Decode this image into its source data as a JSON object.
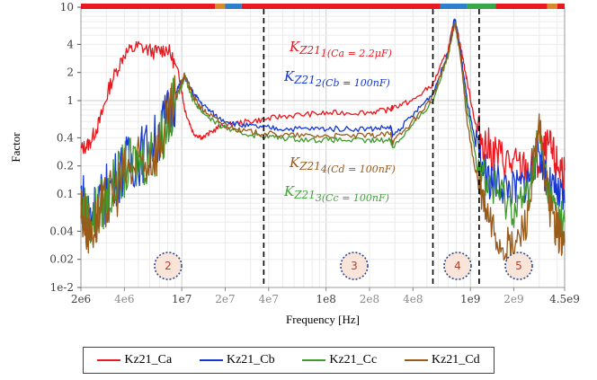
{
  "chart_data": {
    "type": "line",
    "xlabel": "Frequency [Hz]",
    "ylabel": "Factor",
    "xscale": "log",
    "yscale": "log",
    "xlim": [
      2000000,
      4500000000
    ],
    "ylim": [
      0.01,
      10
    ],
    "x_ticks": [
      {
        "value": 2000000,
        "label": "2e6",
        "major": true
      },
      {
        "value": 4000000,
        "label": "4e6",
        "major": false
      },
      {
        "value": 10000000,
        "label": "1e7",
        "major": true
      },
      {
        "value": 20000000,
        "label": "2e7",
        "major": false
      },
      {
        "value": 40000000,
        "label": "4e7",
        "major": false
      },
      {
        "value": 100000000,
        "label": "1e8",
        "major": true
      },
      {
        "value": 200000000,
        "label": "2e8",
        "major": false
      },
      {
        "value": 400000000,
        "label": "4e8",
        "major": false
      },
      {
        "value": 1000000000,
        "label": "1e9",
        "major": true
      },
      {
        "value": 2000000000,
        "label": "2e9",
        "major": false
      },
      {
        "value": 4500000000,
        "label": "4.5e9",
        "major": true
      }
    ],
    "y_ticks": [
      {
        "value": 10,
        "label": "10"
      },
      {
        "value": 4,
        "label": "4"
      },
      {
        "value": 2,
        "label": "2"
      },
      {
        "value": 1,
        "label": "1"
      },
      {
        "value": 0.4,
        "label": "0.4"
      },
      {
        "value": 0.2,
        "label": "0.2"
      },
      {
        "value": 0.1,
        "label": "0.1"
      },
      {
        "value": 0.04,
        "label": "0.04"
      },
      {
        "value": 0.02,
        "label": "0.02"
      },
      {
        "value": 0.01,
        "label": "1e-2"
      }
    ],
    "grid": true,
    "legend_position": "bottom",
    "series": [
      {
        "name": "Kz21_Ca",
        "color": "#e8191f",
        "x": [
          2000000,
          2300000,
          2700000,
          3200000,
          4000000,
          5000000,
          6500000,
          8000000,
          9500000,
          10500000,
          12000000,
          14000000,
          18000000,
          25000000,
          35000000,
          50000000,
          80000000,
          120000000,
          200000000,
          280000000,
          290000000,
          400000000,
          550000000,
          700000000,
          780000000,
          850000000,
          950000000,
          1100000000,
          1300000000,
          1600000000,
          2000000000,
          2500000000,
          3000000000,
          3500000000,
          4000000000,
          4500000000
        ],
        "y": [
          0.3,
          0.35,
          0.6,
          1.5,
          3.2,
          3.8,
          3.3,
          3.6,
          2.0,
          0.8,
          0.45,
          0.4,
          0.52,
          0.58,
          0.62,
          0.68,
          0.72,
          0.74,
          0.75,
          0.8,
          0.85,
          1.0,
          1.5,
          3.5,
          7.5,
          4.0,
          1.6,
          0.5,
          0.32,
          0.25,
          0.2,
          0.18,
          0.22,
          0.32,
          0.2,
          0.18
        ]
      },
      {
        "name": "Kz21_Cb",
        "color": "#1538d4",
        "x": [
          2000000,
          2300000,
          2700000,
          3200000,
          4000000,
          5000000,
          6500000,
          8000000,
          9500000,
          10500000,
          12000000,
          14000000,
          18000000,
          25000000,
          35000000,
          50000000,
          80000000,
          120000000,
          200000000,
          280000000,
          290000000,
          400000000,
          550000000,
          700000000,
          780000000,
          850000000,
          950000000,
          1100000000,
          1300000000,
          1600000000,
          2000000000,
          2500000000,
          3000000000,
          3500000000,
          4000000000,
          4500000000
        ],
        "y": [
          0.1,
          0.06,
          0.08,
          0.12,
          0.2,
          0.25,
          0.35,
          0.7,
          1.4,
          1.8,
          1.2,
          0.9,
          0.65,
          0.55,
          0.52,
          0.5,
          0.5,
          0.5,
          0.5,
          0.52,
          0.42,
          0.7,
          1.2,
          3.2,
          7.8,
          3.5,
          1.0,
          0.3,
          0.15,
          0.13,
          0.11,
          0.14,
          0.3,
          0.12,
          0.1,
          0.08
        ]
      },
      {
        "name": "Kz21_Cc",
        "color": "#3f9a2c",
        "x": [
          2000000,
          2300000,
          2700000,
          3200000,
          4000000,
          5000000,
          6500000,
          8000000,
          9500000,
          10500000,
          12000000,
          14000000,
          18000000,
          25000000,
          35000000,
          50000000,
          80000000,
          120000000,
          200000000,
          280000000,
          290000000,
          400000000,
          550000000,
          700000000,
          780000000,
          850000000,
          950000000,
          1100000000,
          1300000000,
          1600000000,
          2000000000,
          2500000000,
          3000000000,
          3500000000,
          4000000000,
          4500000000
        ],
        "y": [
          0.08,
          0.05,
          0.07,
          0.1,
          0.18,
          0.22,
          0.3,
          0.6,
          1.2,
          1.8,
          1.0,
          0.75,
          0.55,
          0.45,
          0.42,
          0.4,
          0.38,
          0.38,
          0.37,
          0.38,
          0.32,
          0.55,
          1.0,
          3.0,
          7.2,
          3.0,
          0.8,
          0.25,
          0.13,
          0.1,
          0.07,
          0.1,
          0.45,
          0.1,
          0.06,
          0.05
        ]
      },
      {
        "name": "Kz21_Cd",
        "color": "#9a5a18",
        "x": [
          2000000,
          2300000,
          2700000,
          3200000,
          4000000,
          5000000,
          6500000,
          8000000,
          9500000,
          10500000,
          12000000,
          14000000,
          18000000,
          25000000,
          35000000,
          50000000,
          80000000,
          120000000,
          200000000,
          280000000,
          290000000,
          400000000,
          550000000,
          700000000,
          780000000,
          850000000,
          950000000,
          1100000000,
          1300000000,
          1600000000,
          2000000000,
          2500000000,
          3000000000,
          3500000000,
          4000000000,
          4500000000
        ],
        "y": [
          0.07,
          0.04,
          0.06,
          0.09,
          0.16,
          0.2,
          0.28,
          0.55,
          1.3,
          1.9,
          1.1,
          0.8,
          0.6,
          0.48,
          0.45,
          0.43,
          0.42,
          0.42,
          0.42,
          0.44,
          0.36,
          0.6,
          1.1,
          3.1,
          7.0,
          3.2,
          0.6,
          0.15,
          0.06,
          0.03,
          0.025,
          0.06,
          0.5,
          0.08,
          0.04,
          0.03
        ]
      }
    ],
    "annotations": [
      {
        "main": "K",
        "sub_z": "Z21",
        "sub": "1(Ca = 2.2μF)",
        "color": "#e8191f"
      },
      {
        "main": "K",
        "sub_z": "Z21",
        "sub": "2(Cb = 100nF)",
        "color": "#1538d4"
      },
      {
        "main": "K",
        "sub_z": "Z21",
        "sub": "4(Cd = 100nF)",
        "color": "#9a5a18"
      },
      {
        "main": "K",
        "sub_z": "Z21",
        "sub": "3(Cc = 100nF)",
        "color": "#3fa63a"
      }
    ],
    "region_labels": [
      "2",
      "3",
      "4",
      "5"
    ],
    "divider_freqs": [
      37000000,
      550000000,
      1150000000
    ],
    "top_bar": [
      {
        "from": 2000000,
        "to": 17000000,
        "color": "#e8191f"
      },
      {
        "from": 17000000,
        "to": 20000000,
        "color": "#d98a2a"
      },
      {
        "from": 20000000,
        "to": 26000000,
        "color": "#2f7fcf"
      },
      {
        "from": 26000000,
        "to": 620000000,
        "color": "#e8191f"
      },
      {
        "from": 620000000,
        "to": 950000000,
        "color": "#2f7fcf"
      },
      {
        "from": 950000000,
        "to": 1500000000,
        "color": "#38a84a"
      },
      {
        "from": 1500000000,
        "to": 3400000000,
        "color": "#e8191f"
      },
      {
        "from": 3400000000,
        "to": 4000000000,
        "color": "#d98a2a"
      },
      {
        "from": 4000000000,
        "to": 4500000000,
        "color": "#e8191f"
      }
    ]
  }
}
